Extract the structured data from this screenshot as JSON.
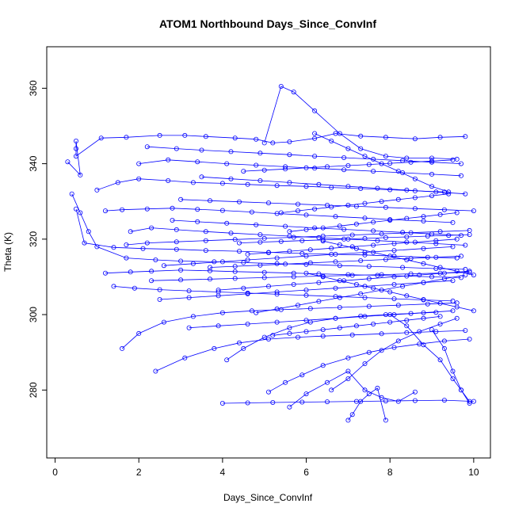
{
  "chart_data": {
    "type": "line",
    "title": "ATOM1 Northbound Days_Since_ConvInf",
    "xlabel": "Days_Since_ConvInf",
    "ylabel": "Theta (K)",
    "xlim": [
      -0.2,
      10.4
    ],
    "ylim": [
      262,
      371
    ],
    "xticks": [
      0,
      2,
      4,
      6,
      8,
      10
    ],
    "yticks": [
      280,
      300,
      320,
      340,
      360
    ],
    "grid": false,
    "legend": "none",
    "series_color": "#0000ff",
    "marker": "open-circle",
    "series": [
      {
        "x": [
          0.3,
          0.6,
          0.5,
          0.5,
          0.5,
          1.1,
          1.7,
          2.5,
          3.1,
          3.6,
          4.3,
          4.8,
          5.2,
          5.6,
          6.2,
          6.7,
          7.3,
          7.9,
          8.6,
          9.2,
          9.8
        ],
        "y": [
          340.5,
          337,
          346,
          344,
          342,
          346.8,
          347,
          347.5,
          347.5,
          347.2,
          346.8,
          346.5,
          345.5,
          345.8,
          346.7,
          348,
          347.3,
          347,
          346.6,
          347,
          347.2
        ]
      },
      {
        "x": [
          0.4,
          0.6,
          0.8,
          1.0,
          1.7,
          2.4,
          3.0,
          3.8,
          4.5,
          5.3,
          6.0,
          6.8,
          7.5,
          8.3,
          9.1,
          9.8
        ],
        "y": [
          332,
          327,
          322,
          318,
          315,
          314.5,
          314.2,
          314,
          313.8,
          313.5,
          313.3,
          313,
          312.8,
          312.5,
          312.2,
          312
        ]
      },
      {
        "x": [
          0.5,
          0.7,
          1.4,
          2.1,
          2.9,
          3.6,
          4.4,
          5.1,
          5.9,
          6.6,
          7.4,
          8.1,
          8.9,
          9.6
        ],
        "y": [
          328,
          319,
          317.8,
          317.5,
          317.3,
          317,
          316.8,
          316.5,
          316.2,
          316,
          315.8,
          315.5,
          315.2,
          315
        ]
      },
      {
        "x": [
          1.2,
          1.6,
          2.2,
          2.8,
          3.4,
          4.0,
          4.7,
          5.3,
          6.0,
          6.7,
          7.4,
          8.0,
          8.8,
          9.5
        ],
        "y": [
          327.5,
          327.8,
          328,
          328.2,
          327.9,
          327.6,
          327.2,
          326.8,
          326.4,
          326,
          325.6,
          325.2,
          324.8,
          324.4
        ]
      },
      {
        "x": [
          1.0,
          1.5,
          2.0,
          2.7,
          3.3,
          4.0,
          4.6,
          5.3,
          6.0,
          6.6,
          7.3,
          8.0,
          8.6,
          9.3
        ],
        "y": [
          333,
          335,
          336,
          335.5,
          335,
          334.8,
          334.5,
          334.2,
          334,
          333.7,
          333.4,
          333.1,
          332.8,
          332.5
        ]
      },
      {
        "x": [
          1.2,
          1.8,
          2.3,
          3.0,
          3.7,
          4.3,
          5.0,
          5.7,
          6.3,
          7.0,
          7.7,
          8.4,
          9.0,
          9.7
        ],
        "y": [
          311,
          311.3,
          311.5,
          311.8,
          311.6,
          311.4,
          311.2,
          311,
          310.8,
          310.6,
          310.4,
          310.2,
          310,
          309.8
        ]
      },
      {
        "x": [
          1.4,
          1.9,
          2.5,
          3.2,
          3.9,
          4.6,
          5.3,
          6.0,
          6.7,
          7.4,
          8.1,
          8.8,
          9.5
        ],
        "y": [
          307.5,
          307,
          306.6,
          306.3,
          306,
          305.7,
          305.4,
          305.1,
          304.8,
          304.5,
          304.2,
          303.9,
          303.6
        ]
      },
      {
        "x": [
          1.6,
          2.0,
          2.6,
          3.3,
          4.0,
          4.7,
          5.4,
          6.1,
          6.8,
          7.5,
          8.2,
          8.9,
          9.6
        ],
        "y": [
          291,
          295,
          298,
          299.5,
          300.5,
          301,
          301.3,
          301.6,
          301.9,
          302.2,
          302.5,
          302.8,
          303.1
        ]
      },
      {
        "x": [
          2.4,
          3.1,
          3.8,
          4.4,
          5.1,
          5.8,
          6.4,
          7.1,
          7.8,
          8.4,
          9.1,
          9.8
        ],
        "y": [
          285,
          288.5,
          291,
          292.5,
          293.5,
          294,
          294.3,
          294.6,
          294.9,
          295.2,
          295.5,
          295.8
        ]
      },
      {
        "x": [
          1.8,
          2.3,
          2.9,
          3.6,
          4.2,
          4.9,
          5.6,
          6.3,
          7.0,
          7.7,
          8.4,
          9.1,
          9.8
        ],
        "y": [
          322,
          323,
          322.5,
          322,
          321.6,
          321.2,
          320.8,
          320.4,
          320,
          319.6,
          319.2,
          318.8,
          318.4
        ]
      },
      {
        "x": [
          1.7,
          2.2,
          2.9,
          3.6,
          4.3,
          5.0,
          5.7,
          6.4,
          7.1,
          7.8,
          8.5,
          9.2,
          9.9
        ],
        "y": [
          318.5,
          319,
          319.3,
          319.6,
          319.9,
          320.2,
          320.5,
          320.8,
          321.1,
          321.4,
          321.7,
          322,
          322.3
        ]
      },
      {
        "x": [
          2.0,
          2.7,
          3.4,
          4.1,
          4.8,
          5.5,
          6.2,
          6.9,
          7.6,
          8.3,
          9.0,
          9.7
        ],
        "y": [
          340,
          341,
          340.5,
          340,
          339.6,
          339.2,
          338.8,
          338.4,
          338,
          337.6,
          337.2,
          336.8
        ]
      },
      {
        "x": [
          2.2,
          2.9,
          3.5,
          4.2,
          4.9,
          5.6,
          6.2,
          6.9,
          7.6,
          8.3,
          9.0,
          9.7
        ],
        "y": [
          344.5,
          344,
          343.6,
          343.2,
          342.8,
          342.4,
          342,
          341.6,
          341.2,
          340.8,
          340.4,
          340
        ]
      },
      {
        "x": [
          2.5,
          3.2,
          3.9,
          4.6,
          5.3,
          6.0,
          6.7,
          7.4,
          8.1,
          8.8,
          9.5
        ],
        "y": [
          304,
          304.5,
          305,
          305.5,
          306,
          306.5,
          307,
          307.5,
          308,
          308.5,
          309
        ]
      },
      {
        "x": [
          2.3,
          3.0,
          3.7,
          4.3,
          5.0,
          5.7,
          6.4,
          7.1,
          7.8,
          8.5,
          9.2,
          9.9
        ],
        "y": [
          309,
          309.2,
          309.4,
          309.6,
          309.8,
          310,
          310.2,
          310.4,
          310.6,
          310.8,
          311,
          311.2
        ]
      },
      {
        "x": [
          2.6,
          3.3,
          4.0,
          4.6,
          5.3,
          6.0,
          6.7,
          7.4,
          8.1,
          8.8,
          9.5
        ],
        "y": [
          313,
          313.5,
          314,
          314.5,
          315,
          315.5,
          316,
          316.5,
          317,
          317.5,
          318
        ]
      },
      {
        "x": [
          2.8,
          3.4,
          4.1,
          4.8,
          5.5,
          6.2,
          6.9,
          7.6,
          8.3,
          9.0,
          9.7
        ],
        "y": [
          325,
          324.6,
          324.2,
          323.8,
          323.4,
          323,
          322.6,
          322.2,
          321.8,
          321.4,
          321
        ]
      },
      {
        "x": [
          3.0,
          3.7,
          4.4,
          5.1,
          5.8,
          6.5,
          7.2,
          7.9,
          8.6,
          9.3,
          10.0
        ],
        "y": [
          330.5,
          330.2,
          329.9,
          329.6,
          329.3,
          329,
          328.7,
          328.4,
          328.1,
          327.8,
          327.5
        ]
      },
      {
        "x": [
          3.2,
          3.9,
          4.6,
          5.3,
          6.0,
          6.7,
          7.4,
          8.1,
          8.8,
          9.5
        ],
        "y": [
          296.5,
          297,
          297.5,
          298,
          298.5,
          299,
          299.5,
          300,
          300.5,
          301
        ]
      },
      {
        "x": [
          3.5,
          4.2,
          4.9,
          5.6,
          6.3,
          7.0,
          7.7,
          8.4,
          9.1,
          9.8
        ],
        "y": [
          336.5,
          336,
          335.5,
          335,
          334.5,
          334,
          333.5,
          333,
          332.5,
          332
        ]
      },
      {
        "x": [
          4.0,
          4.6,
          5.2,
          5.9,
          6.5,
          7.2,
          7.9,
          8.6,
          9.3,
          10.0
        ],
        "y": [
          276.5,
          276.6,
          276.7,
          276.8,
          276.9,
          277,
          277.1,
          277.2,
          277.3,
          277
        ]
      },
      {
        "x": [
          4.1,
          4.5,
          5.0,
          5.6,
          6.1,
          6.7,
          7.3,
          7.9,
          8.5,
          9.1
        ],
        "y": [
          288,
          291,
          294,
          296.5,
          298,
          299,
          299.6,
          300,
          300.3,
          300.6
        ]
      },
      {
        "x": [
          5.0,
          5.4,
          5.7,
          6.2,
          6.8,
          7.3,
          7.9,
          8.4,
          9.0,
          9.6
        ],
        "y": [
          345.5,
          360.5,
          359,
          354,
          348,
          344,
          342,
          341.5,
          341.5,
          341.2
        ]
      },
      {
        "x": [
          5.1,
          5.5,
          5.9,
          6.4,
          7.0,
          7.5,
          8.1,
          8.7,
          9.3,
          9.9
        ],
        "y": [
          279.5,
          282,
          284,
          286.5,
          288.5,
          290,
          291.3,
          292.2,
          293,
          293.5
        ]
      },
      {
        "x": [
          5.6,
          6.0,
          6.5,
          7.0,
          7.4,
          7.8,
          8.2,
          8.6
        ],
        "y": [
          275.5,
          279,
          282,
          285,
          280,
          278,
          277,
          279.5
        ]
      },
      {
        "x": [
          6.6,
          7.0,
          7.4,
          7.8,
          8.2,
          8.7,
          9.2,
          9.6
        ],
        "y": [
          280,
          283,
          287,
          290.5,
          293,
          295.5,
          297.5,
          299
        ]
      },
      {
        "x": [
          7.0,
          7.1,
          7.3,
          7.5,
          7.7,
          7.9
        ],
        "y": [
          272,
          273.5,
          277,
          279,
          280.5,
          272
        ]
      },
      {
        "x": [
          6.2,
          6.6,
          7.0,
          7.4,
          7.8,
          8.2,
          8.6,
          9.0,
          9.4
        ],
        "y": [
          348,
          346,
          344,
          342,
          340,
          338,
          336,
          334,
          332.5
        ]
      },
      {
        "x": [
          4.4,
          4.9,
          5.4,
          5.9,
          6.4,
          6.9,
          7.4,
          7.9,
          8.4,
          8.9,
          9.4,
          9.9
        ],
        "y": [
          319,
          319.2,
          319.4,
          319.6,
          319.8,
          320,
          320.2,
          320.4,
          320.6,
          320.8,
          321,
          321.2
        ]
      },
      {
        "x": [
          4.6,
          5.1,
          5.6,
          6.1,
          6.6,
          7.1,
          7.6,
          8.1,
          8.6,
          9.1,
          9.6
        ],
        "y": [
          316,
          316.4,
          316.8,
          317.2,
          317.6,
          318,
          318.4,
          318.8,
          319.2,
          319.6,
          320
        ]
      },
      {
        "x": [
          3.7,
          4.3,
          4.9,
          5.5,
          6.1,
          6.7,
          7.3,
          7.9,
          8.5,
          9.1,
          9.7
        ],
        "y": [
          312.5,
          312.8,
          313.1,
          313.4,
          313.7,
          314,
          314.3,
          314.6,
          314.9,
          315.2,
          315.5
        ]
      },
      {
        "x": [
          3.9,
          4.5,
          5.1,
          5.7,
          6.3,
          6.9,
          7.5,
          8.1,
          8.7,
          9.3,
          9.9
        ],
        "y": [
          306.5,
          307,
          307.5,
          308,
          308.5,
          309,
          309.5,
          310,
          310.5,
          311,
          311.5
        ]
      },
      {
        "x": [
          4.8,
          5.3,
          5.8,
          6.3,
          6.8,
          7.3,
          7.8,
          8.3,
          8.8,
          9.3,
          9.8
        ],
        "y": [
          300.5,
          301.5,
          302.5,
          303.5,
          304.5,
          305.5,
          306.5,
          307.5,
          308.5,
          309.5,
          310.5
        ]
      },
      {
        "x": [
          5.2,
          5.6,
          6.0,
          6.4,
          6.8,
          7.2,
          7.6,
          8.0,
          8.4,
          8.8,
          9.2
        ],
        "y": [
          294.5,
          295,
          295.5,
          296,
          296.5,
          297,
          297.5,
          298,
          298.5,
          299,
          299.5
        ]
      },
      {
        "x": [
          4.5,
          5.0,
          5.5,
          6.0,
          6.5,
          7.0,
          7.5,
          8.0,
          8.5,
          9.0,
          9.5
        ],
        "y": [
          338,
          338.3,
          338.6,
          338.9,
          339.2,
          339.5,
          339.8,
          340.1,
          340.4,
          340.7,
          341
        ]
      },
      {
        "x": [
          5.4,
          5.8,
          6.2,
          6.6,
          7.0,
          7.4,
          7.8,
          8.2,
          8.6,
          9.0,
          9.4
        ],
        "y": [
          327,
          327.5,
          328,
          328.5,
          329,
          329.5,
          330,
          330.5,
          331,
          331.5,
          332
        ]
      },
      {
        "x": [
          5.6,
          6.0,
          6.4,
          6.8,
          7.2,
          7.6,
          8.0,
          8.4,
          8.8,
          9.2,
          9.6
        ],
        "y": [
          322,
          322.5,
          323,
          323.5,
          324,
          324.5,
          325,
          325.5,
          326,
          326.5,
          327
        ]
      },
      {
        "x": [
          6.0,
          6.4,
          6.8,
          7.2,
          7.6,
          8.0,
          8.4,
          8.8,
          9.2,
          9.6,
          10.0
        ],
        "y": [
          311,
          310,
          309,
          308,
          307,
          306,
          305,
          304,
          303,
          302,
          301
        ]
      },
      {
        "x": [
          6.4,
          6.8,
          7.2,
          7.6,
          8.0,
          8.4,
          8.8,
          9.2,
          9.6,
          10.0
        ],
        "y": [
          319.5,
          318.5,
          317.5,
          316.5,
          315.5,
          314.5,
          313.5,
          312.5,
          311.5,
          310.5
        ]
      },
      {
        "x": [
          8.0,
          8.4,
          8.8,
          9.2,
          9.5,
          9.7,
          9.9
        ],
        "y": [
          300,
          297,
          292,
          288,
          283,
          280,
          277
        ]
      },
      {
        "x": [
          9.0,
          9.3,
          9.5,
          9.7,
          9.9
        ],
        "y": [
          296,
          291,
          285,
          280,
          276.5
        ]
      }
    ]
  }
}
